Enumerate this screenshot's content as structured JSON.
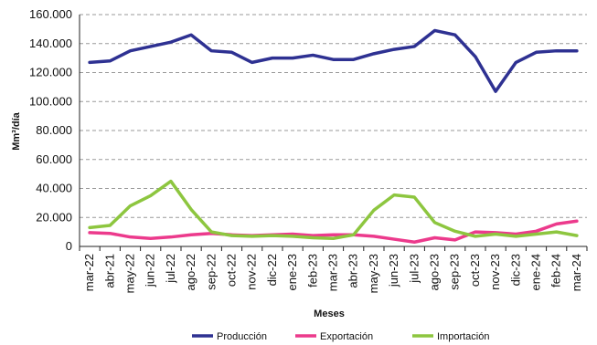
{
  "chart_data": {
    "type": "line",
    "title": "",
    "xlabel": "Meses",
    "ylabel": "Mm³/día",
    "ylim": [
      0,
      160000
    ],
    "yticks": [
      0,
      20000,
      40000,
      60000,
      80000,
      100000,
      120000,
      140000,
      160000
    ],
    "ytick_labels": [
      "0",
      "20.000",
      "40.000",
      "60.000",
      "80.000",
      "100.000",
      "120.000",
      "140.000",
      "160.000"
    ],
    "grid": "horizontal dashed",
    "legend_position": "bottom",
    "categories": [
      "mar-22",
      "abr-21",
      "may-22",
      "jun-22",
      "jul-22",
      "ago-22",
      "sep-22",
      "oct-22",
      "nov-22",
      "dic-22",
      "ene-23",
      "feb-23",
      "mar-23",
      "abr-23",
      "may-23",
      "jun-23",
      "jul-23",
      "ago-23",
      "sep-23",
      "oct-23",
      "nov-23",
      "dic-23",
      "ene-24",
      "feb-24",
      "mar-24"
    ],
    "series": [
      {
        "name": "Producción",
        "color": "#2e3192",
        "values": [
          127000,
          128000,
          135000,
          138000,
          141000,
          146000,
          135000,
          134000,
          127000,
          130000,
          130000,
          132000,
          129000,
          129000,
          133000,
          136000,
          138000,
          149000,
          146000,
          131000,
          107000,
          127000,
          134000,
          135000,
          135000
        ]
      },
      {
        "name": "Exportación",
        "color": "#ec3a8c",
        "values": [
          9500,
          9000,
          6500,
          5500,
          6500,
          8000,
          9000,
          8000,
          7500,
          8000,
          8500,
          7500,
          8000,
          8000,
          7000,
          5000,
          3000,
          6000,
          4500,
          10000,
          9500,
          8500,
          10500,
          15500,
          17500
        ]
      },
      {
        "name": "Importación",
        "color": "#8dc63f",
        "values": [
          13000,
          14500,
          28000,
          35000,
          45000,
          25500,
          10000,
          7500,
          7000,
          7500,
          7000,
          6000,
          5500,
          8000,
          25000,
          35500,
          34000,
          16500,
          10500,
          7000,
          8500,
          7000,
          8500,
          10000,
          7500
        ]
      }
    ]
  }
}
